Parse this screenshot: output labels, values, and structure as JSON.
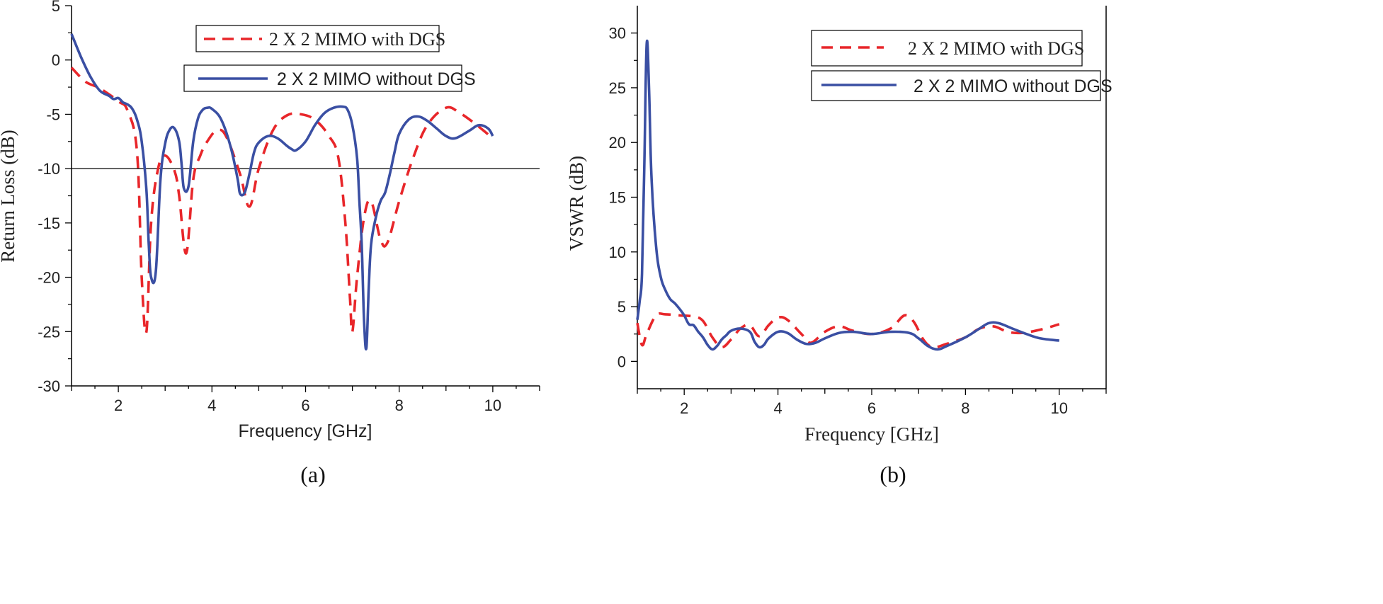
{
  "chart_data": [
    {
      "type": "line",
      "panel": "(a)",
      "xlabel": "Frequency [GHz]",
      "ylabel": "Return Loss (dB)",
      "xlim": [
        1,
        11
      ],
      "ylim": [
        -30,
        5
      ],
      "xticks": [
        2,
        4,
        6,
        8,
        10
      ],
      "yticks": [
        5,
        0,
        -5,
        -10,
        -15,
        -20,
        -25,
        -30
      ],
      "reference_line_y": -10,
      "legend": [
        "2 X 2 MIMO with DGS",
        "2 X 2 MIMO without DGS"
      ],
      "series": [
        {
          "name": "2 X 2 MIMO with DGS",
          "color": "#e8262a",
          "dash": "dashed",
          "points": [
            [
              1.0,
              -0.7
            ],
            [
              1.3,
              -2.0
            ],
            [
              1.6,
              -2.6
            ],
            [
              2.0,
              -3.8
            ],
            [
              2.2,
              -4.7
            ],
            [
              2.4,
              -8.5
            ],
            [
              2.5,
              -20.0
            ],
            [
              2.6,
              -25.0
            ],
            [
              2.7,
              -15.0
            ],
            [
              2.85,
              -10.0
            ],
            [
              3.0,
              -8.8
            ],
            [
              3.2,
              -10.2
            ],
            [
              3.3,
              -12.5
            ],
            [
              3.45,
              -17.8
            ],
            [
              3.6,
              -11.0
            ],
            [
              3.75,
              -8.8
            ],
            [
              3.9,
              -7.5
            ],
            [
              4.1,
              -6.5
            ],
            [
              4.3,
              -7.0
            ],
            [
              4.6,
              -10.5
            ],
            [
              4.8,
              -13.5
            ],
            [
              5.0,
              -10.0
            ],
            [
              5.3,
              -6.5
            ],
            [
              5.6,
              -5.1
            ],
            [
              5.9,
              -5.0
            ],
            [
              6.2,
              -5.5
            ],
            [
              6.5,
              -7.0
            ],
            [
              6.7,
              -9.0
            ],
            [
              6.85,
              -15.0
            ],
            [
              6.95,
              -22.0
            ],
            [
              7.0,
              -25.0
            ],
            [
              7.1,
              -20.0
            ],
            [
              7.25,
              -14.5
            ],
            [
              7.4,
              -13.0
            ],
            [
              7.6,
              -16.5
            ],
            [
              7.75,
              -16.8
            ],
            [
              8.0,
              -13.0
            ],
            [
              8.3,
              -9.0
            ],
            [
              8.6,
              -6.0
            ],
            [
              9.0,
              -4.4
            ],
            [
              9.3,
              -4.9
            ],
            [
              9.6,
              -5.8
            ],
            [
              10.0,
              -7.2
            ]
          ]
        },
        {
          "name": "2 X 2 MIMO without DGS",
          "color": "#3a4fa3",
          "dash": "solid",
          "points": [
            [
              1.0,
              2.4
            ],
            [
              1.2,
              0.3
            ],
            [
              1.4,
              -1.5
            ],
            [
              1.6,
              -2.8
            ],
            [
              1.8,
              -3.3
            ],
            [
              1.9,
              -3.6
            ],
            [
              2.0,
              -3.5
            ],
            [
              2.1,
              -3.9
            ],
            [
              2.2,
              -4.1
            ],
            [
              2.3,
              -4.5
            ],
            [
              2.4,
              -5.5
            ],
            [
              2.5,
              -7.5
            ],
            [
              2.6,
              -12.0
            ],
            [
              2.65,
              -17.0
            ],
            [
              2.7,
              -20.0
            ],
            [
              2.8,
              -19.5
            ],
            [
              2.9,
              -11.0
            ],
            [
              3.0,
              -7.7
            ],
            [
              3.1,
              -6.4
            ],
            [
              3.2,
              -6.3
            ],
            [
              3.3,
              -7.5
            ],
            [
              3.35,
              -9.5
            ],
            [
              3.4,
              -11.8
            ],
            [
              3.5,
              -11.6
            ],
            [
              3.6,
              -7.5
            ],
            [
              3.7,
              -5.4
            ],
            [
              3.8,
              -4.6
            ],
            [
              3.9,
              -4.4
            ],
            [
              4.0,
              -4.5
            ],
            [
              4.2,
              -5.5
            ],
            [
              4.4,
              -8.0
            ],
            [
              4.55,
              -11.0
            ],
            [
              4.6,
              -12.3
            ],
            [
              4.7,
              -12.2
            ],
            [
              4.8,
              -10.5
            ],
            [
              4.9,
              -8.5
            ],
            [
              5.0,
              -7.6
            ],
            [
              5.2,
              -7.0
            ],
            [
              5.4,
              -7.2
            ],
            [
              5.6,
              -7.9
            ],
            [
              5.7,
              -8.2
            ],
            [
              5.8,
              -8.3
            ],
            [
              6.0,
              -7.5
            ],
            [
              6.2,
              -6.0
            ],
            [
              6.4,
              -4.9
            ],
            [
              6.6,
              -4.4
            ],
            [
              6.8,
              -4.3
            ],
            [
              6.9,
              -4.6
            ],
            [
              7.0,
              -6.0
            ],
            [
              7.1,
              -9.0
            ],
            [
              7.15,
              -13.0
            ],
            [
              7.2,
              -17.0
            ],
            [
              7.25,
              -24.0
            ],
            [
              7.3,
              -26.5
            ],
            [
              7.35,
              -21.0
            ],
            [
              7.4,
              -17.0
            ],
            [
              7.5,
              -14.5
            ],
            [
              7.6,
              -13.0
            ],
            [
              7.7,
              -12.2
            ],
            [
              7.8,
              -10.5
            ],
            [
              7.9,
              -8.5
            ],
            [
              8.0,
              -6.8
            ],
            [
              8.2,
              -5.5
            ],
            [
              8.4,
              -5.2
            ],
            [
              8.6,
              -5.6
            ],
            [
              8.8,
              -6.3
            ],
            [
              9.0,
              -7.0
            ],
            [
              9.2,
              -7.2
            ],
            [
              9.5,
              -6.5
            ],
            [
              9.7,
              -6.0
            ],
            [
              9.9,
              -6.3
            ],
            [
              10.0,
              -7.0
            ]
          ]
        }
      ]
    },
    {
      "type": "line",
      "panel": "(b)",
      "xlabel": "Frequency [GHz]",
      "ylabel": "VSWR (dB)",
      "xlim": [
        1,
        11
      ],
      "ylim": [
        -2.5,
        32.5
      ],
      "xticks": [
        2,
        4,
        6,
        8,
        10
      ],
      "yticks": [
        0,
        5,
        10,
        15,
        20,
        25,
        30
      ],
      "legend": [
        "2 X 2 MIMO with DGS",
        "2 X 2 MIMO without DGS"
      ],
      "series": [
        {
          "name": "2 X 2 MIMO with DGS",
          "color": "#e8262a",
          "dash": "dashed",
          "points": [
            [
              1.0,
              3.5
            ],
            [
              1.1,
              1.5
            ],
            [
              1.2,
              2.5
            ],
            [
              1.4,
              4.2
            ],
            [
              1.6,
              4.3
            ],
            [
              1.9,
              4.2
            ],
            [
              2.2,
              4.1
            ],
            [
              2.4,
              3.7
            ],
            [
              2.6,
              2.2
            ],
            [
              2.8,
              1.3
            ],
            [
              3.0,
              2.0
            ],
            [
              3.2,
              3.0
            ],
            [
              3.4,
              3.3
            ],
            [
              3.6,
              2.3
            ],
            [
              3.8,
              3.3
            ],
            [
              4.0,
              4.0
            ],
            [
              4.2,
              3.8
            ],
            [
              4.5,
              2.5
            ],
            [
              4.7,
              1.7
            ],
            [
              5.0,
              2.7
            ],
            [
              5.3,
              3.2
            ],
            [
              5.6,
              2.8
            ],
            [
              6.0,
              2.5
            ],
            [
              6.4,
              3.0
            ],
            [
              6.7,
              4.2
            ],
            [
              6.9,
              3.6
            ],
            [
              7.1,
              2.0
            ],
            [
              7.3,
              1.3
            ],
            [
              7.6,
              1.6
            ],
            [
              8.0,
              2.2
            ],
            [
              8.3,
              3.0
            ],
            [
              8.6,
              3.2
            ],
            [
              8.9,
              2.7
            ],
            [
              9.2,
              2.6
            ],
            [
              9.6,
              2.9
            ],
            [
              10.0,
              3.4
            ]
          ]
        },
        {
          "name": "2 X 2 MIMO without DGS",
          "color": "#3a4fa3",
          "dash": "solid",
          "points": [
            [
              1.0,
              3.8
            ],
            [
              1.05,
              5.5
            ],
            [
              1.1,
              8.0
            ],
            [
              1.15,
              18.0
            ],
            [
              1.2,
              29.0
            ],
            [
              1.25,
              25.0
            ],
            [
              1.3,
              17.0
            ],
            [
              1.4,
              10.5
            ],
            [
              1.5,
              7.7
            ],
            [
              1.6,
              6.5
            ],
            [
              1.7,
              5.7
            ],
            [
              1.8,
              5.3
            ],
            [
              1.9,
              4.8
            ],
            [
              2.0,
              4.2
            ],
            [
              2.1,
              3.4
            ],
            [
              2.2,
              3.3
            ],
            [
              2.3,
              2.7
            ],
            [
              2.4,
              2.2
            ],
            [
              2.5,
              1.5
            ],
            [
              2.6,
              1.1
            ],
            [
              2.7,
              1.4
            ],
            [
              2.8,
              2.0
            ],
            [
              2.9,
              2.4
            ],
            [
              3.0,
              2.8
            ],
            [
              3.2,
              3.0
            ],
            [
              3.4,
              2.7
            ],
            [
              3.5,
              1.8
            ],
            [
              3.6,
              1.3
            ],
            [
              3.7,
              1.5
            ],
            [
              3.8,
              2.1
            ],
            [
              4.0,
              2.7
            ],
            [
              4.2,
              2.6
            ],
            [
              4.4,
              2.0
            ],
            [
              4.6,
              1.6
            ],
            [
              4.8,
              1.7
            ],
            [
              5.0,
              2.1
            ],
            [
              5.3,
              2.6
            ],
            [
              5.6,
              2.7
            ],
            [
              6.0,
              2.5
            ],
            [
              6.4,
              2.7
            ],
            [
              6.8,
              2.6
            ],
            [
              7.0,
              2.1
            ],
            [
              7.2,
              1.4
            ],
            [
              7.4,
              1.1
            ],
            [
              7.6,
              1.4
            ],
            [
              8.0,
              2.2
            ],
            [
              8.3,
              3.0
            ],
            [
              8.5,
              3.5
            ],
            [
              8.7,
              3.5
            ],
            [
              9.0,
              3.0
            ],
            [
              9.3,
              2.5
            ],
            [
              9.6,
              2.1
            ],
            [
              10.0,
              1.9
            ]
          ]
        }
      ]
    }
  ]
}
